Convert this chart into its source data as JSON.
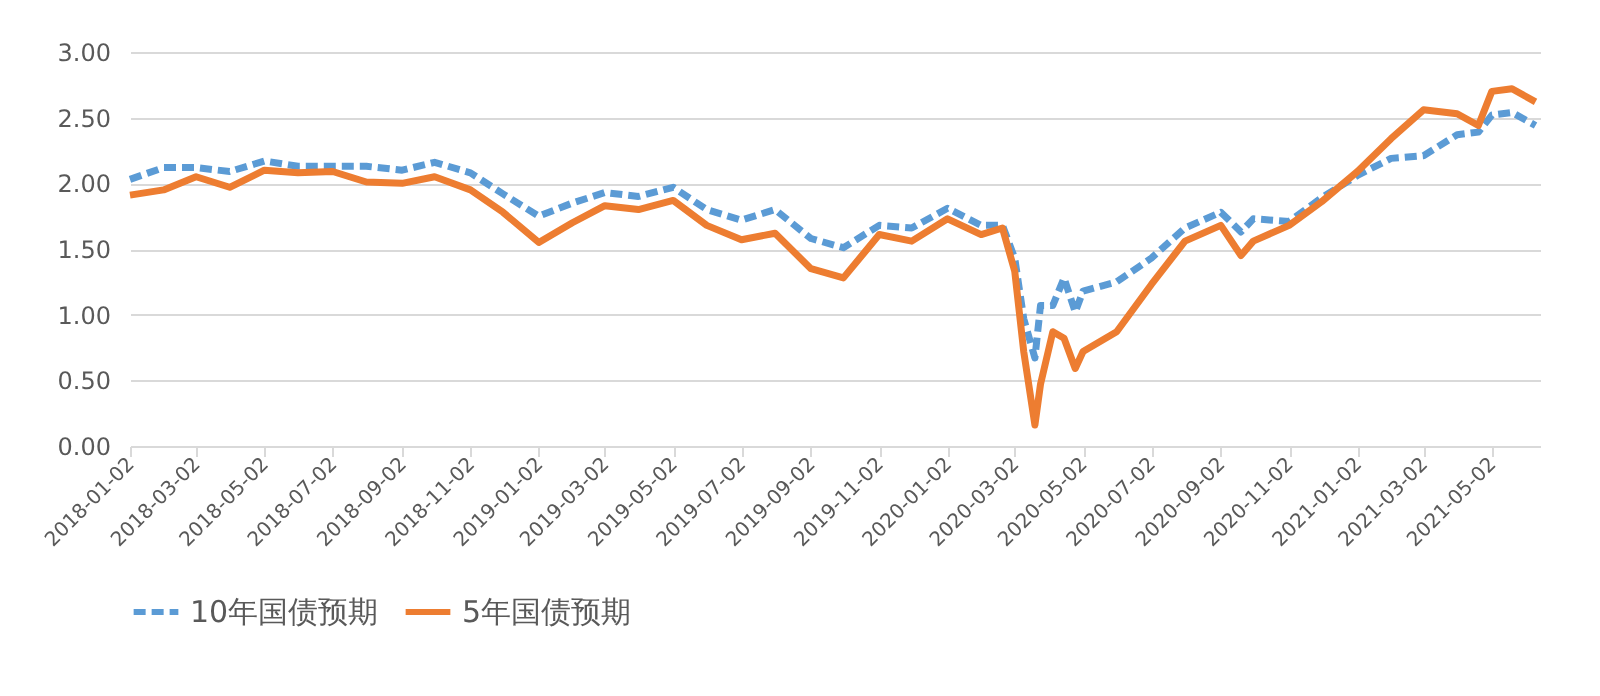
{
  "chart_data": {
    "type": "line",
    "xlim": [
      "2018-01-02",
      "2021-06-14"
    ],
    "ylim": [
      0,
      3
    ],
    "yticks": [
      {
        "value": 0,
        "label": "0.00"
      },
      {
        "value": 0.5,
        "label": "0.50"
      },
      {
        "value": 1,
        "label": "1.00"
      },
      {
        "value": 1.5,
        "label": "1.50"
      },
      {
        "value": 2,
        "label": "2.00"
      },
      {
        "value": 2.5,
        "label": "2.50"
      },
      {
        "value": 3,
        "label": "3.00"
      }
    ],
    "xticks": [
      "2018-01-02",
      "2018-03-02",
      "2018-05-02",
      "2018-07-02",
      "2018-09-02",
      "2018-11-02",
      "2019-01-02",
      "2019-03-02",
      "2019-05-02",
      "2019-07-02",
      "2019-09-02",
      "2019-11-02",
      "2020-01-02",
      "2020-03-02",
      "2020-05-02",
      "2020-07-02",
      "2020-09-02",
      "2020-11-02",
      "2021-01-02",
      "2021-03-02",
      "2021-05-02"
    ],
    "x": [
      "2018-01-02",
      "2018-02-01",
      "2018-03-02",
      "2018-04-01",
      "2018-05-02",
      "2018-06-01",
      "2018-07-02",
      "2018-08-01",
      "2018-09-02",
      "2018-10-01",
      "2018-11-02",
      "2018-12-01",
      "2019-01-02",
      "2019-02-01",
      "2019-03-02",
      "2019-04-01",
      "2019-05-02",
      "2019-06-01",
      "2019-07-02",
      "2019-08-01",
      "2019-09-02",
      "2019-10-01",
      "2019-11-02",
      "2019-12-01",
      "2020-01-02",
      "2020-02-01",
      "2020-02-20",
      "2020-03-02",
      "2020-03-10",
      "2020-03-20",
      "2020-03-25",
      "2020-04-05",
      "2020-04-15",
      "2020-04-25",
      "2020-05-02",
      "2020-06-01",
      "2020-07-02",
      "2020-08-01",
      "2020-09-02",
      "2020-09-20",
      "2020-10-01",
      "2020-11-02",
      "2020-12-01",
      "2021-01-02",
      "2021-02-01",
      "2021-03-02",
      "2021-04-01",
      "2021-04-20",
      "2021-05-02",
      "2021-05-20",
      "2021-06-10"
    ],
    "series": [
      {
        "name": "10年国债预期",
        "color": "#5b9bd5",
        "line_style": "dashed",
        "values": [
          2.03,
          2.12,
          2.12,
          2.09,
          2.17,
          2.13,
          2.13,
          2.13,
          2.1,
          2.16,
          2.08,
          1.92,
          1.75,
          1.85,
          1.93,
          1.9,
          1.97,
          1.8,
          1.72,
          1.8,
          1.58,
          1.51,
          1.68,
          1.66,
          1.81,
          1.68,
          1.68,
          1.43,
          0.97,
          0.67,
          1.07,
          1.07,
          1.28,
          1.02,
          1.18,
          1.25,
          1.43,
          1.66,
          1.78,
          1.63,
          1.73,
          1.71,
          1.89,
          2.06,
          2.19,
          2.21,
          2.37,
          2.39,
          2.52,
          2.54,
          2.44
        ]
      },
      {
        "name": "5年国债预期",
        "color": "#ed7d31",
        "line_style": "solid",
        "values": [
          1.91,
          1.95,
          2.05,
          1.97,
          2.1,
          2.08,
          2.09,
          2.01,
          2.0,
          2.05,
          1.95,
          1.78,
          1.55,
          1.7,
          1.83,
          1.8,
          1.87,
          1.68,
          1.57,
          1.62,
          1.35,
          1.28,
          1.61,
          1.56,
          1.73,
          1.61,
          1.66,
          1.33,
          0.72,
          0.16,
          0.47,
          0.87,
          0.82,
          0.59,
          0.72,
          0.87,
          1.23,
          1.56,
          1.68,
          1.45,
          1.56,
          1.68,
          1.86,
          2.09,
          2.34,
          2.56,
          2.53,
          2.44,
          2.7,
          2.72,
          2.62
        ]
      }
    ],
    "grid": "y",
    "legend": "bottom"
  }
}
